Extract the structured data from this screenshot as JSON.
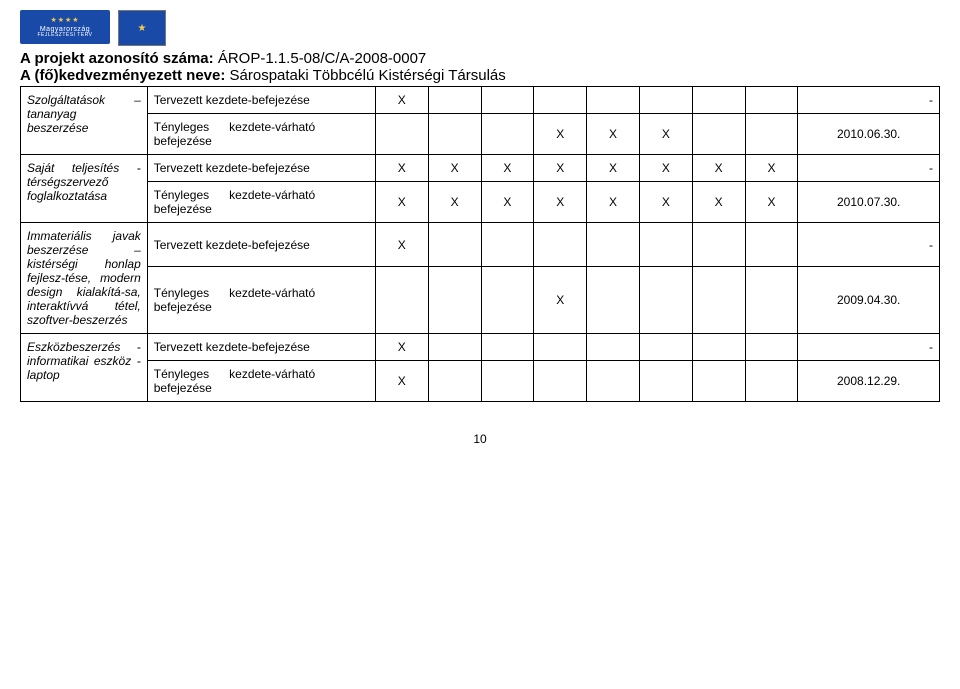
{
  "header": {
    "logo1_top": "★★★★",
    "logo1_word": "Magyarország",
    "logo1_sub": "FEJLESZTÉSI TERV",
    "eu_stars": "★",
    "title_line1_bold": "A projekt azonosító száma:",
    "title_line1_rest": " ÁROP-1.1.5-08/C/A-2008-0007",
    "title_line2_bold": "A (fő)kedvezményezett neve:",
    "title_line2_rest": " Sárospataki Többcélú Kistérségi Társulás"
  },
  "labels": {
    "tervezett": "Tervezett kezdete-befejezése",
    "tenyleges_prefix": "Tényleges",
    "tenyleges_mid": "kezdete-várható",
    "befejezese": "befejezése"
  },
  "rows": {
    "r1_desc": "Szolgáltatások – tananyag beszerzése",
    "r2_date": "2010.06.30.",
    "r3_desc": "Saját teljesítés - térségszervező foglalkoztatása",
    "r4_date": "2010.07.30.",
    "r5_desc": "Immateriális javak beszerzése – kistérségi honlap fejlesz-tése, modern design kialakítá-sa, interaktívvá tétel, szoftver-beszerzés",
    "r6_date": "2009.04.30.",
    "r7_desc": "Eszközbeszerzés - informatikai eszköz - laptop",
    "r8_date": "2008.12.29."
  },
  "mark": "X",
  "dash": "-",
  "pagenum": "10"
}
